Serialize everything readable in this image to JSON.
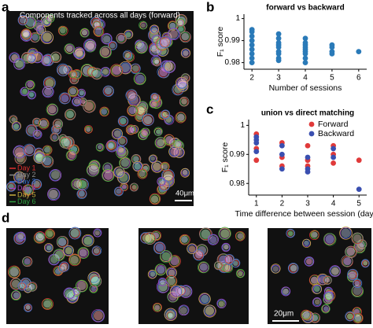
{
  "panel_labels": [
    "a",
    "b",
    "c",
    "d"
  ],
  "image_a": {
    "title": "Components tracked across all days (forward)",
    "legend": [
      {
        "label": "Day 1",
        "color": "#e03030"
      },
      {
        "label": "Day 2",
        "color": "#8a8a8a"
      },
      {
        "label": "Day 3",
        "color": "#3a6fd0"
      },
      {
        "label": "Day 4",
        "color": "#a040c0"
      },
      {
        "label": "Day 5",
        "color": "#c8b040"
      },
      {
        "label": "Day 6",
        "color": "#30a040"
      }
    ],
    "scale_bar": "40μm"
  },
  "image_d": {
    "scale_bar": "20μm"
  },
  "chart_data": [
    {
      "type": "scatter",
      "title": "forward vs backward",
      "x_label": "Number of sessions",
      "y_label": "F₁ score",
      "xlim": [
        1.7,
        6.3
      ],
      "xticks": [
        2,
        3,
        4,
        5,
        6
      ],
      "ylim": [
        0.977,
        1.002
      ],
      "yticks": [
        0.98,
        0.99,
        1
      ],
      "series": [
        {
          "color": "#2a7ab8",
          "x": [
            2,
            2,
            2,
            2,
            2,
            2,
            2,
            2,
            2,
            3,
            3,
            3,
            3,
            3,
            3,
            3,
            3,
            3,
            4,
            4,
            4,
            4,
            4,
            4,
            4,
            4,
            4,
            5,
            5,
            5,
            5,
            6
          ],
          "values": [
            0.995,
            0.994,
            0.992,
            0.99,
            0.988,
            0.986,
            0.984,
            0.982,
            0.98,
            0.993,
            0.991,
            0.989,
            0.988,
            0.987,
            0.985,
            0.984,
            0.982,
            0.981,
            0.991,
            0.989,
            0.988,
            0.987,
            0.986,
            0.985,
            0.984,
            0.982,
            0.98,
            0.988,
            0.987,
            0.985,
            0.984,
            0.985
          ]
        }
      ]
    },
    {
      "type": "scatter",
      "title": "union vs direct matching",
      "x_label": "Time difference between session (days)",
      "y_label": "F₁ score",
      "xlim": [
        0.7,
        5.3
      ],
      "xticks": [
        1,
        2,
        3,
        4,
        5
      ],
      "ylim": [
        0.976,
        1.002
      ],
      "yticks": [
        0.98,
        0.99,
        1
      ],
      "legend": "upper right",
      "series": [
        {
          "name": "Forward",
          "color": "#e03a3a",
          "x": [
            1,
            1,
            1,
            2,
            2,
            2,
            3,
            3,
            3,
            4,
            4,
            4,
            5
          ],
          "values": [
            0.997,
            0.992,
            0.988,
            0.994,
            0.989,
            0.986,
            0.993,
            0.988,
            0.986,
            0.993,
            0.99,
            0.987,
            0.988
          ]
        },
        {
          "name": "Backward",
          "color": "#3a4fb0",
          "x": [
            1,
            1,
            1,
            1,
            2,
            2,
            2,
            3,
            3,
            3,
            4,
            4,
            5
          ],
          "values": [
            0.996,
            0.995,
            0.994,
            0.991,
            0.993,
            0.99,
            0.985,
            0.989,
            0.985,
            0.984,
            0.992,
            0.989,
            0.978
          ]
        }
      ]
    }
  ]
}
